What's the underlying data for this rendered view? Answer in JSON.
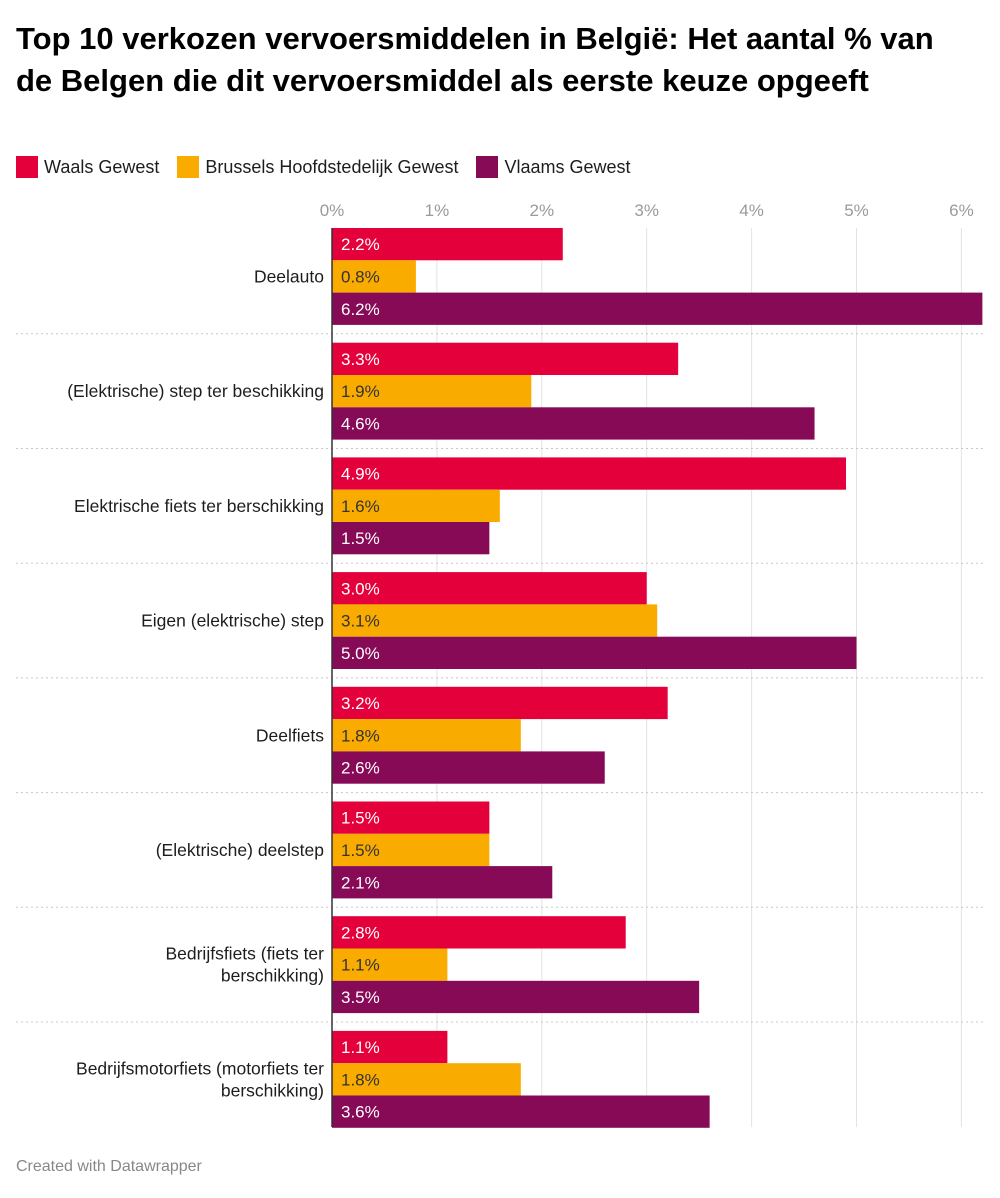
{
  "title": "Top 10 verkozen vervoersmiddelen in België: Het aantal % van de Belgen die dit vervoersmiddel als eerste keuze opgeeft",
  "footer": "Created with Datawrapper",
  "colors": {
    "waals": "#e4003b",
    "brussels": "#f9ab00",
    "vlaams": "#870a57"
  },
  "chart_data": {
    "type": "bar",
    "orientation": "horizontal",
    "title": "Top 10 verkozen vervoersmiddelen in België: Het aantal % van de Belgen die dit vervoersmiddel als eerste keuze opgeeft",
    "xlabel": "",
    "ylabel": "",
    "xlim": [
      0,
      6.2
    ],
    "x_ticks": [
      "0%",
      "1%",
      "2%",
      "3%",
      "4%",
      "5%",
      "6%"
    ],
    "legend_position": "top-left",
    "grid": true,
    "categories": [
      "Deelauto",
      "(Elektrische) step ter beschikking",
      "Elektrische fiets ter berschikking",
      "Eigen (elektrische) step",
      "Deelfiets",
      "(Elektrische) deelstep",
      "Bedrijfsfiets (fiets ter berschikking)",
      "Bedrijfsmotorfiets (motorfiets ter berschikking)"
    ],
    "series": [
      {
        "name": "Waals Gewest",
        "color": "#e4003b",
        "values": [
          2.2,
          3.3,
          4.9,
          3.0,
          3.2,
          1.5,
          2.8,
          1.1
        ],
        "labels": [
          "2.2%",
          "3.3%",
          "4.9%",
          "3.0%",
          "3.2%",
          "1.5%",
          "2.8%",
          "1.1%"
        ]
      },
      {
        "name": "Brussels Hoofdstedelijk Gewest",
        "color": "#f9ab00",
        "values": [
          0.8,
          1.9,
          1.6,
          3.1,
          1.8,
          1.5,
          1.1,
          1.8
        ],
        "labels": [
          "0.8%",
          "1.9%",
          "1.6%",
          "3.1%",
          "1.8%",
          "1.5%",
          "1.1%",
          "1.8%"
        ]
      },
      {
        "name": "Vlaams Gewest",
        "color": "#870a57",
        "values": [
          6.2,
          4.6,
          1.5,
          5.0,
          2.6,
          2.1,
          3.5,
          3.6
        ],
        "labels": [
          "6.2%",
          "4.6%",
          "1.5%",
          "5.0%",
          "2.6%",
          "2.1%",
          "3.5%",
          "3.6%"
        ]
      }
    ]
  }
}
